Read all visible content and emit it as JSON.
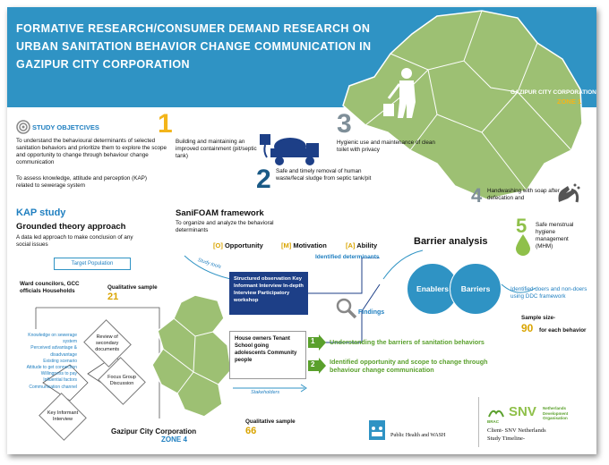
{
  "title": "Formative Research/Consumer Demand Research on Urban Sanitation Behavior Change Communication in Gazipur City Corporation",
  "zone1": {
    "name": "GAZIPUR CITY CORPORATION",
    "zone": "ZONE 1"
  },
  "objectives": {
    "heading": "STUDY OBJETCIVES",
    "items": [
      "To understand the behavioural determinants of selected sanitation behaviors and prioritize them to explore the scope and opportunity to change through behaviour change communication",
      "To assess knowledge, attitude and perception (KAP) related to sewerage system"
    ]
  },
  "focus": {
    "number": "1",
    "heading": "FOCUS BEHAVIOURS",
    "b1": "Building and maintaining an improved containment (pit/septic tank)",
    "n2": "2",
    "b2": "Safe and timely removal of human waste/fecal sludge from septic tank/pit",
    "n3": "3",
    "b3": "Hygienic use and maintenance of clean toilet with privacy",
    "n4": "4",
    "b4": "Handwashing with soap after defecation and",
    "n5": "5",
    "b5": "Safe menstrual hygiene management (MHM)"
  },
  "kap": {
    "heading": "KAP study",
    "grounded": "Grounded theory approach",
    "desc": "A data led approach to make conclusion of any social issues",
    "target": "Target Population",
    "officials": "Ward councilors, GCC officials Households",
    "qual_label": "Qualitative sample",
    "qual_value": "21",
    "topics": [
      "Knowledge on sewerage system",
      "Perceived advantage & disadvantage",
      "Existing scenario",
      "Attitude to get connection",
      "Willingness to pay",
      "Influential factors",
      "Communication channel"
    ],
    "secondary": "Review of secondary documents",
    "fgd": "Focus Group Discussion",
    "kii": "Key Informant Interview"
  },
  "sanifoam": {
    "heading": "SaniFOAM framework",
    "desc": "To organize and analyze the behavioral determinants",
    "o_letter": "[O]",
    "o_word": "Opportunity",
    "m_letter": "[M]",
    "m_word": "Motivation",
    "a_letter": "[A]",
    "a_word": "Ability",
    "study_tools": "Study tools",
    "tools": "Structured observation Key Informant Interview In-depth Interview Participatory workshop",
    "identified": "Identified determinants",
    "findings": "Findings"
  },
  "stakeholders": {
    "list": "House owners Tenant School going adolescents Community people",
    "label": "Stakeholders"
  },
  "zone4": {
    "name": "Gazipur City Corporation",
    "zone": "ZONE 4",
    "qual_label": "Qualitative sample",
    "qual_value": "66"
  },
  "barrier": {
    "heading": "Barrier analysis",
    "enablers": "Enablers",
    "barriers": "Barriers",
    "doers": "Identified doers and non-doers using DDC framework",
    "sample_label": "Sample size-",
    "sample_value": "90",
    "sample_suffix": "for each behavior"
  },
  "outcomes": {
    "o1_num": "1",
    "o1": "Understanding the barriers of sanitation behaviors",
    "o2_num": "2",
    "o2": "Identified opportunity and scope to change through behaviour change communication"
  },
  "footer": {
    "phw": "Public Health and WASH",
    "client": "Client- SNV Netherlands",
    "timeline": "Study Timeline-",
    "snv": "SNV",
    "snv_sub": "Netherlands Development Organisation",
    "brac": "BRAC"
  },
  "colors": {
    "accent": "#2f93c4",
    "navy": "#1d3f87",
    "yellow": "#f3b51b",
    "green": "#5aa02c",
    "map": "#a6c77a"
  }
}
